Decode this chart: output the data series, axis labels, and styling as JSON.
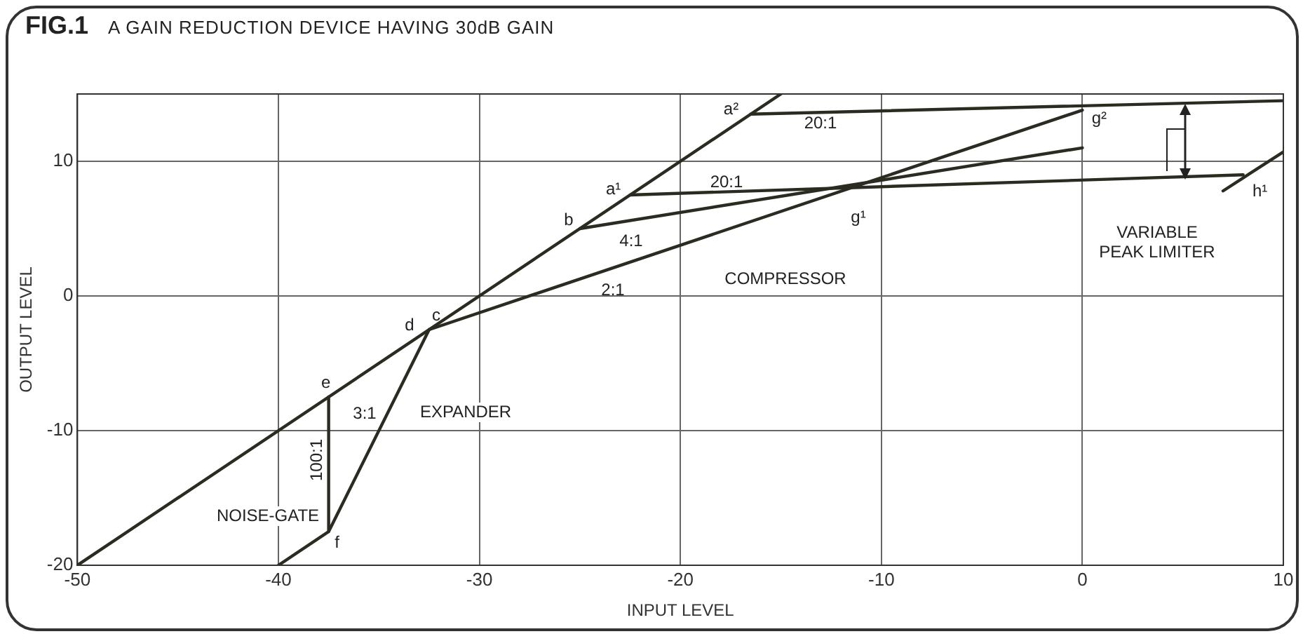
{
  "chart_data": {
    "type": "line",
    "title": "FIG.1",
    "subtitle": "A GAIN REDUCTION DEVICE HAVING 30dB GAIN",
    "xlabel": "INPUT LEVEL",
    "ylabel": "OUTPUT LEVEL",
    "xlim": [
      -50,
      10
    ],
    "xticks": [
      -50,
      -40,
      -30,
      -20,
      -10,
      0,
      10
    ],
    "ylim": [
      -20,
      15
    ],
    "yticks": [
      -20,
      -10,
      0,
      10
    ],
    "grid": true,
    "legend": false,
    "marker": "none",
    "line_style": "solid",
    "series": [
      {
        "color": "#2b2b22",
        "x": [
          -50,
          -15
        ],
        "values": [
          -20,
          15
        ]
      },
      {
        "color": "#2b2b22",
        "x": [
          -40,
          -37.5,
          -37.5
        ],
        "values": [
          -20,
          -17.5,
          -7.5
        ]
      },
      {
        "color": "#2b2b22",
        "x": [
          -37.5,
          -32.5
        ],
        "values": [
          -17.5,
          -2.5
        ]
      },
      {
        "color": "#2b2b22",
        "x": [
          -32.5,
          0
        ],
        "values": [
          -2.5,
          13.8
        ]
      },
      {
        "color": "#2b2b22",
        "x": [
          -25,
          0
        ],
        "values": [
          5,
          11
        ]
      },
      {
        "color": "#2b2b22",
        "x": [
          -22.5,
          8
        ],
        "values": [
          7.5,
          9
        ]
      },
      {
        "color": "#2b2b22",
        "x": [
          7,
          10
        ],
        "values": [
          7.8,
          10.7
        ]
      },
      {
        "color": "#2b2b22",
        "x": [
          -16.5,
          10
        ],
        "values": [
          13.5,
          14.5
        ]
      }
    ],
    "annotations": [
      {
        "text": "a²",
        "x": -16.5,
        "y": 13.5
      },
      {
        "text": "a¹",
        "x": -22.5,
        "y": 7.5
      },
      {
        "text": "b",
        "x": -25,
        "y": 5
      },
      {
        "text": "c",
        "x": -32.5,
        "y": -2.5
      },
      {
        "text": "d",
        "x": -32.5,
        "y": -2.5
      },
      {
        "text": "e",
        "x": -37.5,
        "y": -7.5
      },
      {
        "text": "f",
        "x": -37.5,
        "y": -17.5
      },
      "g¹",
      {
        "text": "g²",
        "x": 0,
        "y": 13.8
      },
      {
        "text": "h¹",
        "x": 8,
        "y": 9
      },
      "20:1",
      "20:1",
      "4:1",
      "2:1",
      "3:1",
      "100:1",
      "COMPRESSOR",
      "EXPANDER",
      "NOISE-GATE",
      "VARIABLE\nPEAK LIMITER"
    ]
  }
}
